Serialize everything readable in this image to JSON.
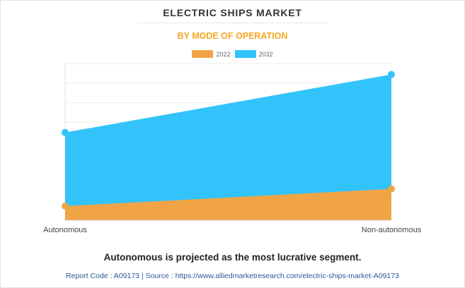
{
  "header": {
    "title": "ELECTRIC SHIPS MARKET",
    "subtitle": "BY MODE OF OPERATION"
  },
  "footer": {
    "note": "Autonomous is projected as the most lucrative segment.",
    "report_code_label": "Report Code : A09173",
    "separator": "|",
    "source_label": "Source : https://www.alliedmarketresearch.com/electric-ships-market-A09173"
  },
  "colors": {
    "series_2022": "#f0a445",
    "series_2032": "#33c3fb",
    "accent": "#f5a623",
    "link": "#2b5797"
  },
  "chart_data": {
    "type": "area",
    "title": "ELECTRIC SHIPS MARKET",
    "subtitle": "BY MODE OF OPERATION",
    "categories": [
      "Autonomous",
      "Non-autonomous"
    ],
    "series": [
      {
        "name": "2022",
        "values": [
          0.9,
          2.0
        ]
      },
      {
        "name": "2032",
        "values": [
          5.6,
          9.3
        ]
      }
    ],
    "xlabel": "",
    "ylabel": "",
    "ylim": [
      0,
      10
    ],
    "grid": true,
    "legend": "top-center"
  }
}
